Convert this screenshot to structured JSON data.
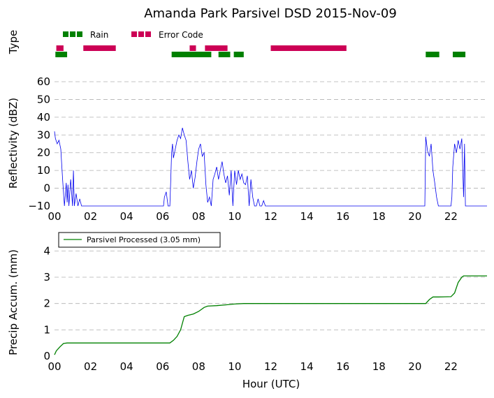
{
  "chart_data": [
    {
      "type": "timeline",
      "title": "Amanda Park Parsivel DSD 2015-Nov-09",
      "ylabel": "Type",
      "xlim": [
        0,
        24
      ],
      "legend": [
        {
          "name": "Rain",
          "color": "#008000"
        },
        {
          "name": "Error Code",
          "color": "#cc0055"
        }
      ],
      "series": [
        {
          "name": "Error Code",
          "color": "#cc0055",
          "intervals": [
            [
              0.1,
              0.5
            ],
            [
              1.6,
              3.4
            ],
            [
              7.5,
              7.85
            ],
            [
              8.35,
              9.6
            ],
            [
              12.0,
              16.2
            ]
          ]
        },
        {
          "name": "Rain",
          "color": "#008000",
          "intervals": [
            [
              0.05,
              0.7
            ],
            [
              6.5,
              8.7
            ],
            [
              9.1,
              9.75
            ],
            [
              9.95,
              10.5
            ],
            [
              20.6,
              21.35
            ],
            [
              22.1,
              22.8
            ]
          ]
        }
      ]
    },
    {
      "type": "line",
      "ylabel": "Reflectivity (dBZ)",
      "xlim": [
        0,
        24
      ],
      "ylim": [
        -10,
        60
      ],
      "yticks": [
        -10,
        0,
        10,
        20,
        30,
        40,
        50,
        60
      ],
      "grid": true,
      "color": "#0000ee",
      "x": [
        0,
        0.05,
        0.15,
        0.25,
        0.35,
        0.45,
        0.55,
        0.65,
        0.7,
        0.75,
        0.8,
        0.9,
        1.0,
        1.05,
        1.1,
        1.2,
        1.3,
        1.4,
        1.5,
        1.6,
        1.7,
        6.05,
        6.1,
        6.2,
        6.3,
        6.4,
        6.45,
        6.5,
        6.55,
        6.6,
        6.7,
        6.8,
        6.9,
        7.0,
        7.1,
        7.2,
        7.3,
        7.4,
        7.5,
        7.6,
        7.7,
        7.8,
        7.9,
        8.0,
        8.1,
        8.2,
        8.3,
        8.4,
        8.5,
        8.6,
        8.7,
        8.8,
        8.9,
        9.0,
        9.1,
        9.2,
        9.3,
        9.4,
        9.5,
        9.6,
        9.7,
        9.8,
        9.9,
        10.0,
        10.1,
        10.2,
        10.3,
        10.4,
        10.5,
        10.6,
        10.7,
        10.8,
        10.9,
        11.0,
        11.1,
        11.2,
        11.3,
        11.4,
        11.5,
        11.6,
        11.7,
        11.8,
        12.0,
        20.55,
        20.6,
        20.7,
        20.8,
        20.9,
        21.0,
        21.1,
        21.2,
        21.3,
        21.35,
        21.4,
        22.0,
        22.05,
        22.1,
        22.2,
        22.3,
        22.4,
        22.5,
        22.6,
        22.7,
        22.75,
        22.8,
        24.0
      ],
      "values": [
        32,
        28,
        25,
        27,
        22,
        5,
        -10,
        3,
        -8,
        2,
        -10,
        5,
        -10,
        10,
        -10,
        -3,
        -10,
        -6,
        -10,
        -10,
        -10,
        -10,
        -5,
        -2,
        -10,
        -10,
        5,
        20,
        25,
        17,
        22,
        27,
        30,
        28,
        34,
        30,
        27,
        15,
        5,
        10,
        0,
        6,
        15,
        22,
        25,
        18,
        20,
        2,
        -8,
        -5,
        -10,
        5,
        8,
        12,
        5,
        10,
        15,
        8,
        3,
        7,
        -4,
        10,
        -10,
        10,
        2,
        10,
        5,
        8,
        3,
        2,
        7,
        -10,
        5,
        -5,
        -10,
        -10,
        -6,
        -10,
        -10,
        -7,
        -10,
        -10,
        -10,
        -10,
        29,
        21,
        18,
        25,
        10,
        3,
        -5,
        -10,
        -10,
        -10,
        -10,
        -5,
        12,
        25,
        20,
        27,
        22,
        28,
        -5,
        25,
        -10,
        -10
      ]
    },
    {
      "type": "line",
      "ylabel": "Precip Accum. (mm)",
      "xlabel": "Hour (UTC)",
      "xlim": [
        0,
        24
      ],
      "ylim": [
        0,
        4.7
      ],
      "yticks": [
        0,
        1,
        2,
        3,
        4
      ],
      "xticks": [
        0,
        2,
        4,
        6,
        8,
        10,
        12,
        14,
        16,
        18,
        20,
        22
      ],
      "xticklabels": [
        "00",
        "02",
        "04",
        "06",
        "08",
        "10",
        "12",
        "14",
        "16",
        "18",
        "20",
        "22"
      ],
      "grid": true,
      "color": "#008000",
      "series": [
        {
          "name": "Parsivel Processed (3.05 mm)",
          "x": [
            0,
            0.1,
            0.3,
            0.5,
            0.7,
            1.0,
            6.4,
            6.6,
            6.8,
            7.0,
            7.2,
            7.4,
            7.7,
            8.0,
            8.3,
            8.5,
            9.0,
            9.5,
            10.0,
            10.5,
            12.0,
            20.6,
            20.8,
            21.0,
            21.3,
            22.0,
            22.2,
            22.4,
            22.6,
            22.7,
            24.0
          ],
          "values": [
            0.05,
            0.2,
            0.35,
            0.48,
            0.5,
            0.5,
            0.5,
            0.6,
            0.75,
            1.0,
            1.5,
            1.55,
            1.6,
            1.7,
            1.85,
            1.9,
            1.92,
            1.95,
            1.98,
            2.0,
            2.0,
            2.0,
            2.15,
            2.25,
            2.25,
            2.26,
            2.4,
            2.8,
            3.0,
            3.05,
            3.05
          ]
        }
      ]
    }
  ]
}
